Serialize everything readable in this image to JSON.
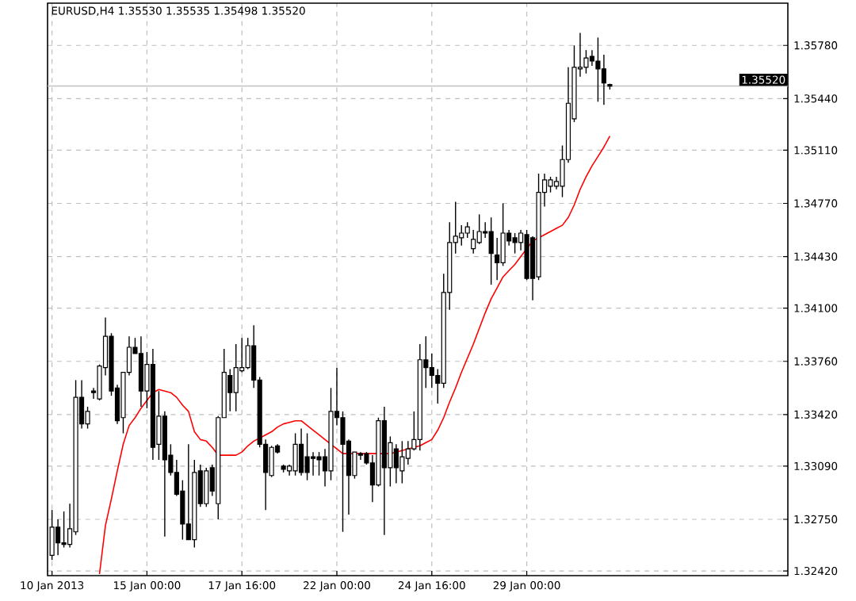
{
  "chart_data": {
    "type": "candlestick",
    "title": "EURUSD,H4  1.35530 1.35535 1.35498 1.35520",
    "categories": [
      "10 Jan 2013",
      null,
      null,
      null,
      null,
      null,
      null,
      null,
      null,
      null,
      null,
      null,
      null,
      null,
      null,
      null,
      "15 Jan 00:00",
      null,
      null,
      null,
      null,
      null,
      null,
      null,
      null,
      null,
      null,
      null,
      null,
      null,
      null,
      null,
      "17 Jan 16:00",
      null,
      null,
      null,
      null,
      null,
      null,
      null,
      null,
      null,
      null,
      null,
      null,
      null,
      null,
      null,
      "22 Jan 00:00",
      null,
      null,
      null,
      null,
      null,
      null,
      null,
      null,
      null,
      null,
      null,
      null,
      null,
      null,
      null,
      "24 Jan 16:00",
      null,
      null,
      null,
      null,
      null,
      null,
      null,
      null,
      null,
      null,
      null,
      null,
      null,
      null,
      null,
      "29 Jan 00:00",
      null,
      null,
      null,
      null,
      null,
      null,
      null,
      null,
      null,
      null,
      null,
      null,
      null,
      null
    ],
    "color": "#000000",
    "ohlc": [
      [
        1.3252,
        1.3281,
        1.3249,
        1.327
      ],
      [
        1.327,
        1.3275,
        1.3252,
        1.326
      ],
      [
        1.326,
        1.328,
        1.3257,
        1.3259
      ],
      [
        1.3259,
        1.3285,
        1.3257,
        1.3269
      ],
      [
        1.3267,
        1.3364,
        1.3265,
        1.3353
      ],
      [
        1.3353,
        1.3364,
        1.3333,
        1.3336
      ],
      [
        1.3336,
        1.3347,
        1.3333,
        1.3344
      ],
      [
        1.3357,
        1.3359,
        1.3352,
        1.3356
      ],
      [
        1.3352,
        1.3374,
        1.3351,
        1.3373
      ],
      [
        1.3372,
        1.3404,
        1.3367,
        1.3392
      ],
      [
        1.3392,
        1.3394,
        1.3354,
        1.3357
      ],
      [
        1.3359,
        1.3361,
        1.3336,
        1.3338
      ],
      [
        1.334,
        1.3369,
        1.333,
        1.3369
      ],
      [
        1.3369,
        1.3392,
        1.3367,
        1.3385
      ],
      [
        1.3385,
        1.3391,
        1.3381,
        1.3381
      ],
      [
        1.3381,
        1.3392,
        1.3347,
        1.3357
      ],
      [
        1.3357,
        1.3382,
        1.3346,
        1.3374
      ],
      [
        1.3374,
        1.3384,
        1.3313,
        1.3321
      ],
      [
        1.3323,
        1.3357,
        1.3313,
        1.3341
      ],
      [
        1.3341,
        1.3344,
        1.3264,
        1.3313
      ],
      [
        1.3316,
        1.3323,
        1.3303,
        1.3305
      ],
      [
        1.3305,
        1.3313,
        1.329,
        1.3291
      ],
      [
        1.3293,
        1.33,
        1.3262,
        1.3272
      ],
      [
        1.3272,
        1.3323,
        1.3262,
        1.3262
      ],
      [
        1.3262,
        1.3313,
        1.3257,
        1.3305
      ],
      [
        1.3306,
        1.331,
        1.3283,
        1.3285
      ],
      [
        1.3285,
        1.3308,
        1.3283,
        1.3306
      ],
      [
        1.3308,
        1.331,
        1.329,
        1.3293
      ],
      [
        1.3285,
        1.3341,
        1.3275,
        1.334
      ],
      [
        1.334,
        1.3384,
        1.334,
        1.3369
      ],
      [
        1.3367,
        1.3371,
        1.3344,
        1.3356
      ],
      [
        1.3356,
        1.3387,
        1.3344,
        1.3372
      ],
      [
        1.337,
        1.3391,
        1.3369,
        1.3372
      ],
      [
        1.3372,
        1.3391,
        1.3371,
        1.3386
      ],
      [
        1.3386,
        1.3399,
        1.3359,
        1.3364
      ],
      [
        1.3364,
        1.3366,
        1.3321,
        1.3323
      ],
      [
        1.3323,
        1.3326,
        1.3281,
        1.3305
      ],
      [
        1.3303,
        1.3322,
        1.3302,
        1.3321
      ],
      [
        1.3322,
        1.3323,
        1.3317,
        1.3318
      ],
      [
        1.3309,
        1.331,
        1.3305,
        1.3307
      ],
      [
        1.3306,
        1.331,
        1.3303,
        1.3309
      ],
      [
        1.3306,
        1.333,
        1.3303,
        1.3323
      ],
      [
        1.3323,
        1.3333,
        1.3303,
        1.3305
      ],
      [
        1.3315,
        1.333,
        1.33,
        1.3305
      ],
      [
        1.3315,
        1.3318,
        1.3303,
        1.3314
      ],
      [
        1.3315,
        1.3318,
        1.3303,
        1.3313
      ],
      [
        1.3315,
        1.332,
        1.3296,
        1.3306
      ],
      [
        1.3306,
        1.3359,
        1.33,
        1.3344
      ],
      [
        1.3344,
        1.3372,
        1.3335,
        1.334
      ],
      [
        1.334,
        1.3344,
        1.3267,
        1.3323
      ],
      [
        1.3325,
        1.3326,
        1.3278,
        1.3303
      ],
      [
        1.3303,
        1.3318,
        1.3301,
        1.3318
      ],
      [
        1.3317,
        1.3318,
        1.3313,
        1.3316
      ],
      [
        1.3317,
        1.3318,
        1.331,
        1.3311
      ],
      [
        1.3311,
        1.3316,
        1.3286,
        1.3297
      ],
      [
        1.3297,
        1.334,
        1.3296,
        1.3338
      ],
      [
        1.3338,
        1.3347,
        1.3265,
        1.3308
      ],
      [
        1.3308,
        1.3328,
        1.3296,
        1.3324
      ],
      [
        1.332,
        1.3323,
        1.3298,
        1.3308
      ],
      [
        1.3306,
        1.3325,
        1.3298,
        1.3315
      ],
      [
        1.3314,
        1.3325,
        1.331,
        1.332
      ],
      [
        1.332,
        1.3344,
        1.3319,
        1.3326
      ],
      [
        1.3326,
        1.3387,
        1.3319,
        1.3377
      ],
      [
        1.3377,
        1.3392,
        1.3359,
        1.3372
      ],
      [
        1.3372,
        1.3381,
        1.3359,
        1.3367
      ],
      [
        1.3367,
        1.3371,
        1.3349,
        1.3362
      ],
      [
        1.3362,
        1.3432,
        1.3359,
        1.342
      ],
      [
        1.342,
        1.3465,
        1.3409,
        1.3452
      ],
      [
        1.3452,
        1.3478,
        1.3445,
        1.3456
      ],
      [
        1.3455,
        1.3463,
        1.345,
        1.3458
      ],
      [
        1.3458,
        1.3465,
        1.3455,
        1.3462
      ],
      [
        1.3448,
        1.346,
        1.3445,
        1.3454
      ],
      [
        1.3452,
        1.347,
        1.3451,
        1.3459
      ],
      [
        1.3459,
        1.3465,
        1.3455,
        1.3458
      ],
      [
        1.3459,
        1.3468,
        1.3425,
        1.3445
      ],
      [
        1.3444,
        1.3455,
        1.3428,
        1.3439
      ],
      [
        1.3439,
        1.3477,
        1.3437,
        1.3458
      ],
      [
        1.3458,
        1.346,
        1.345,
        1.3453
      ],
      [
        1.3455,
        1.3458,
        1.3445,
        1.3452
      ],
      [
        1.3452,
        1.346,
        1.3447,
        1.3458
      ],
      [
        1.3457,
        1.346,
        1.3428,
        1.3429
      ],
      [
        1.3455,
        1.3456,
        1.3415,
        1.3429
      ],
      [
        1.343,
        1.3496,
        1.3428,
        1.3484
      ],
      [
        1.3484,
        1.3496,
        1.3475,
        1.3492
      ],
      [
        1.3488,
        1.3494,
        1.3484,
        1.3492
      ],
      [
        1.3488,
        1.3494,
        1.3486,
        1.3491
      ],
      [
        1.3488,
        1.3514,
        1.3481,
        1.3505
      ],
      [
        1.3505,
        1.3564,
        1.3503,
        1.3541
      ],
      [
        1.3531,
        1.3578,
        1.3529,
        1.3564
      ],
      [
        1.3563,
        1.3586,
        1.3558,
        1.3564
      ],
      [
        1.3564,
        1.3575,
        1.356,
        1.357
      ],
      [
        1.3571,
        1.3575,
        1.3565,
        1.3568
      ],
      [
        1.3568,
        1.3583,
        1.3542,
        1.3563
      ],
      [
        1.3563,
        1.3572,
        1.354,
        1.3554
      ],
      [
        1.3553,
        1.35535,
        1.35498,
        1.3552
      ]
    ],
    "series": [
      {
        "type": "line",
        "color": "#ff0000",
        "values": [
          null,
          null,
          null,
          null,
          null,
          null,
          null,
          null,
          1.324,
          1.3271,
          1.3288,
          1.3306,
          1.3323,
          1.3335,
          1.334,
          1.3346,
          1.3351,
          1.3356,
          1.3358,
          1.3357,
          1.3356,
          1.3353,
          1.3348,
          1.3344,
          1.3331,
          1.3326,
          1.3325,
          1.3321,
          1.3316,
          1.3316,
          1.3316,
          1.3316,
          1.3318,
          1.3322,
          1.3325,
          1.3327,
          1.3329,
          1.3331,
          1.3334,
          1.3336,
          1.3337,
          1.3338,
          1.3338,
          1.3335,
          1.3332,
          1.3329,
          1.3326,
          1.3323,
          1.332,
          1.3317,
          1.3317,
          1.3317,
          1.3317,
          1.3317,
          1.3317,
          1.3317,
          1.3317,
          1.3317,
          1.3318,
          1.3319,
          1.332,
          1.3321,
          1.3322,
          1.3324,
          1.3326,
          1.3332,
          1.334,
          1.335,
          1.3359,
          1.3369,
          1.3378,
          1.3387,
          1.3397,
          1.3407,
          1.3416,
          1.3423,
          1.343,
          1.3434,
          1.3438,
          1.3443,
          1.3448,
          1.3453,
          1.3455,
          1.3457,
          1.3459,
          1.3461,
          1.3463,
          1.3468,
          1.3476,
          1.3486,
          1.3494,
          1.3501,
          1.3507,
          1.3513,
          1.352
        ]
      }
    ],
    "ylim": [
      1.3239,
      1.3605
    ],
    "yticks": [
      {
        "value": 1.3242,
        "label": "1.32420"
      },
      {
        "value": 1.3275,
        "label": "1.32750"
      },
      {
        "value": 1.3309,
        "label": "1.33090"
      },
      {
        "value": 1.3342,
        "label": "1.33420"
      },
      {
        "value": 1.3376,
        "label": "1.33760"
      },
      {
        "value": 1.341,
        "label": "1.34100"
      },
      {
        "value": 1.3443,
        "label": "1.34430"
      },
      {
        "value": 1.3477,
        "label": "1.34770"
      },
      {
        "value": 1.3511,
        "label": "1.35110"
      },
      {
        "value": 1.3544,
        "label": "1.35440"
      },
      {
        "value": 1.3578,
        "label": "1.35780"
      }
    ],
    "ref_lines": [
      {
        "axis": "y",
        "value": 1.3552,
        "label": "1.35520",
        "color": "#c0c0c0"
      }
    ],
    "grid": true,
    "line_style": "solid"
  }
}
